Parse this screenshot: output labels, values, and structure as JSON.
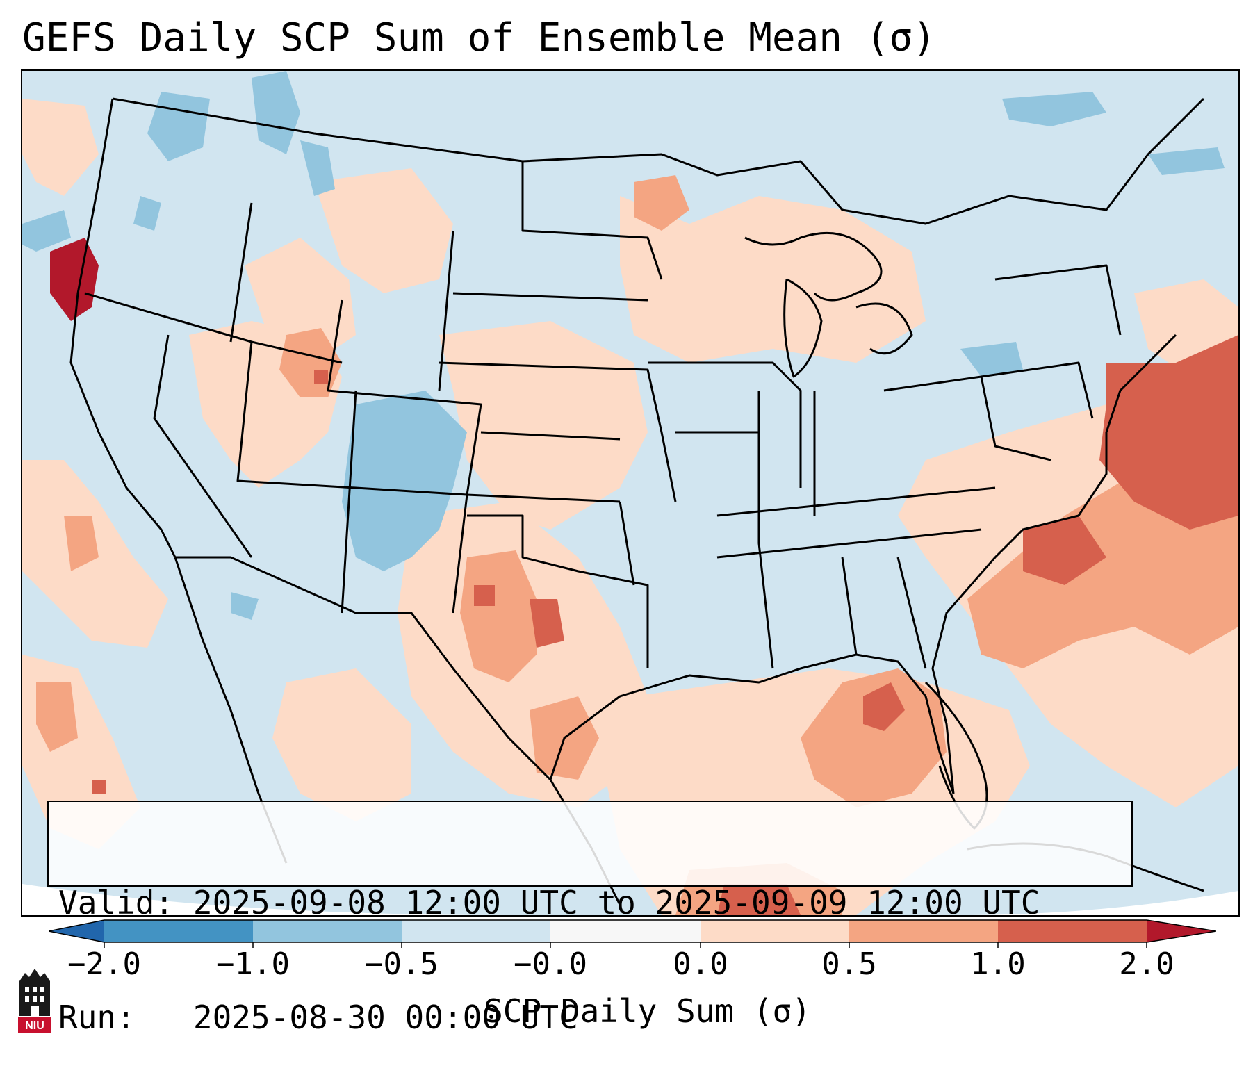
{
  "title": "GEFS Daily SCP Sum of Ensemble Mean (σ)",
  "info": {
    "valid_label": "Valid:",
    "valid_value": "2025-09-08 12:00 UTC to 2025-09-09 12:00 UTC",
    "run_label": "Run:",
    "run_value": "2025-08-30 00:00 UTC"
  },
  "colorbar": {
    "label": "SCP Daily Sum (σ)",
    "ticks": [
      "−2.0",
      "−1.0",
      "−0.5",
      "−0.0",
      "0.0",
      "0.5",
      "1.0",
      "2.0"
    ],
    "bins": [
      {
        "from": -2.0,
        "to": -1.0,
        "color": "#4393c3"
      },
      {
        "from": -1.0,
        "to": -0.5,
        "color": "#92c5de"
      },
      {
        "from": -0.5,
        "to": -0.0,
        "color": "#d1e5f0"
      },
      {
        "from": -0.0,
        "to": 0.0,
        "color": "#f7f7f7"
      },
      {
        "from": 0.0,
        "to": 0.5,
        "color": "#fddbc7"
      },
      {
        "from": 0.5,
        "to": 1.0,
        "color": "#f4a582"
      },
      {
        "from": 1.0,
        "to": 2.0,
        "color": "#d6604d"
      }
    ],
    "under_color": "#2166ac",
    "over_color": "#b2182b"
  },
  "colors": {
    "background_field": "#d1e5f0",
    "light_pos": "#fddbc7",
    "mid_pos": "#f4a582",
    "high_pos": "#d6604d",
    "extreme_pos": "#b2182b",
    "light_neg": "#92c5de",
    "border": "#000000"
  },
  "logo": {
    "text": "NIU"
  }
}
